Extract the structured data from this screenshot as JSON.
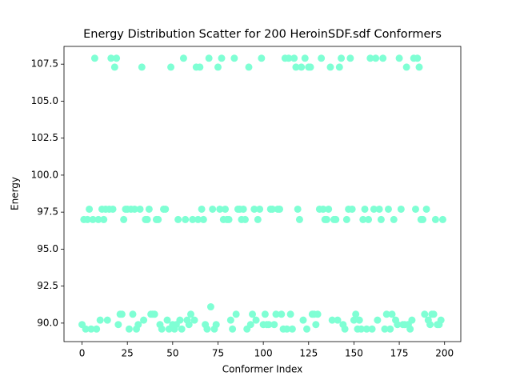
{
  "chart_data": {
    "type": "scatter",
    "title": "Energy Distribution Scatter for 200 HeroinSDF.sdf Conformers",
    "x_label": "Conformer Index",
    "y_label": "Energy",
    "color": "#7fffd4",
    "x": [
      0,
      1,
      2,
      3,
      4,
      5,
      6,
      7,
      8,
      9,
      10,
      11,
      12,
      13,
      14,
      15,
      16,
      17,
      18,
      19,
      20,
      21,
      22,
      23,
      24,
      25,
      26,
      27,
      28,
      29,
      30,
      31,
      32,
      33,
      34,
      35,
      36,
      37,
      38,
      39,
      40,
      41,
      42,
      43,
      44,
      45,
      46,
      47,
      48,
      49,
      50,
      51,
      52,
      53,
      54,
      55,
      56,
      57,
      58,
      59,
      60,
      61,
      62,
      63,
      64,
      65,
      66,
      67,
      68,
      69,
      70,
      71,
      72,
      73,
      74,
      75,
      76,
      77,
      78,
      79,
      80,
      81,
      82,
      83,
      84,
      85,
      86,
      87,
      88,
      89,
      90,
      91,
      92,
      93,
      94,
      95,
      96,
      97,
      98,
      99,
      100,
      101,
      102,
      103,
      104,
      105,
      106,
      107,
      108,
      109,
      110,
      111,
      112,
      113,
      114,
      115,
      116,
      117,
      118,
      119,
      120,
      121,
      122,
      123,
      124,
      125,
      126,
      127,
      128,
      129,
      130,
      131,
      132,
      133,
      134,
      135,
      136,
      137,
      138,
      139,
      140,
      141,
      142,
      143,
      144,
      145,
      146,
      147,
      148,
      149,
      150,
      151,
      152,
      153,
      154,
      155,
      156,
      157,
      158,
      159,
      160,
      161,
      162,
      163,
      164,
      165,
      166,
      167,
      168,
      169,
      170,
      171,
      172,
      173,
      174,
      175,
      176,
      177,
      178,
      179,
      180,
      181,
      182,
      183,
      184,
      185,
      186,
      187,
      188,
      189,
      190,
      191,
      192,
      193,
      194,
      195,
      196,
      197,
      198,
      199
    ],
    "values": [
      89.9,
      97.0,
      89.6,
      97.0,
      97.7,
      89.6,
      97.0,
      107.9,
      89.6,
      97.0,
      90.2,
      97.7,
      97.0,
      97.7,
      90.2,
      97.7,
      107.9,
      97.7,
      107.3,
      107.9,
      89.9,
      90.6,
      90.6,
      97.0,
      97.7,
      97.7,
      89.6,
      97.7,
      90.6,
      97.7,
      89.6,
      89.9,
      97.7,
      107.3,
      90.2,
      97.0,
      97.0,
      97.7,
      90.6,
      90.6,
      90.6,
      97.0,
      97.0,
      89.9,
      89.6,
      97.7,
      97.7,
      90.2,
      89.6,
      107.3,
      89.9,
      89.6,
      89.9,
      97.0,
      90.2,
      89.6,
      107.9,
      97.0,
      90.2,
      89.9,
      90.6,
      97.0,
      90.2,
      107.3,
      97.0,
      107.3,
      97.7,
      97.0,
      89.9,
      89.6,
      107.9,
      91.1,
      97.7,
      89.6,
      89.9,
      107.3,
      97.7,
      107.9,
      97.0,
      97.7,
      97.0,
      97.0,
      90.2,
      89.6,
      107.9,
      90.6,
      97.7,
      97.7,
      97.0,
      97.7,
      97.0,
      89.6,
      107.3,
      89.9,
      90.6,
      97.7,
      90.2,
      97.0,
      97.7,
      107.9,
      89.9,
      90.6,
      89.9,
      89.9,
      97.7,
      97.7,
      89.9,
      90.6,
      97.7,
      97.7,
      90.6,
      89.6,
      107.9,
      89.6,
      107.9,
      90.6,
      89.6,
      107.9,
      107.3,
      97.7,
      97.0,
      107.3,
      90.2,
      107.9,
      89.6,
      107.3,
      107.3,
      90.6,
      90.6,
      89.9,
      90.6,
      97.7,
      107.9,
      97.7,
      97.0,
      97.0,
      97.7,
      107.3,
      90.2,
      97.0,
      97.0,
      90.2,
      107.3,
      107.9,
      89.9,
      89.6,
      97.0,
      97.7,
      107.9,
      97.7,
      90.2,
      90.6,
      89.6,
      90.2,
      89.6,
      97.0,
      97.7,
      89.6,
      97.0,
      107.9,
      89.6,
      97.7,
      107.9,
      90.2,
      97.7,
      97.0,
      107.9,
      89.6,
      90.6,
      97.7,
      89.6,
      90.6,
      97.0,
      90.2,
      89.9,
      107.9,
      97.7,
      89.9,
      89.9,
      107.3,
      89.9,
      89.6,
      90.2,
      107.9,
      97.7,
      107.9,
      107.3,
      97.0,
      97.0,
      90.6,
      97.7,
      90.2,
      89.9,
      90.6,
      90.6,
      97.0,
      89.9,
      89.9,
      90.2,
      97.0
    ],
    "xlim": [
      -9.95,
      208.95
    ],
    "ylim": [
      88.75,
      108.7
    ],
    "xticks": [
      0,
      25,
      50,
      75,
      100,
      125,
      150,
      175,
      200
    ],
    "yticks": [
      {
        "value": 90,
        "label": "90.0"
      },
      92.5,
      {
        "value": 95,
        "label": "95.0"
      },
      97.5,
      {
        "value": 100,
        "label": "100.0"
      },
      102.5,
      {
        "value": 105,
        "label": "105.0"
      },
      107.5
    ]
  }
}
